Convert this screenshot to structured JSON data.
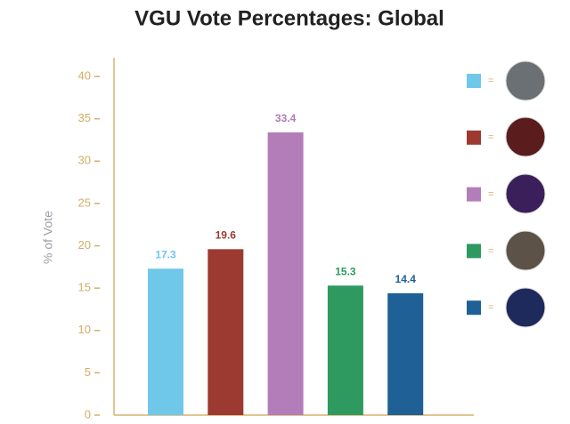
{
  "chart_data": {
    "type": "bar",
    "title": "VGU Vote Percentages: Global",
    "y_label": "% of Vote",
    "categories": [
      null,
      null,
      null,
      null,
      null
    ],
    "values": [
      17.3,
      19.6,
      33.4,
      15.3,
      14.4
    ],
    "colors": [
      "#6fc8ea",
      "#9c3a31",
      "#b27db9",
      "#2e9a5f",
      "#1f6096"
    ],
    "ylim": [
      0,
      42
    ],
    "yticks": [
      0,
      5,
      10,
      15,
      20,
      25,
      30,
      35,
      40
    ],
    "legend_separator": "="
  }
}
